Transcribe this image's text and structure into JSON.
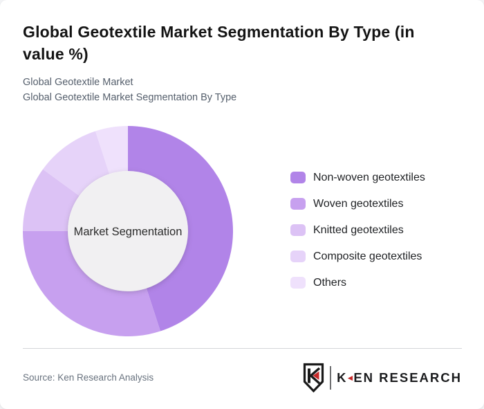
{
  "header": {
    "title": "Global Geotextile Market Segmentation By Type (in value %)",
    "subtitle_line1": "Global Geotextile Market",
    "subtitle_line2": "Global Geotextile Market Segmentation By Type"
  },
  "chart_data": {
    "type": "pie",
    "donut": true,
    "title": "Global Geotextile Market Segmentation By Type (in value %)",
    "center_label": "Market Segmentation",
    "legend_position": "right",
    "start_angle_deg": 0,
    "direction": "clockwise",
    "categories": [
      "Non-woven geotextiles",
      "Woven geotextiles",
      "Knitted geotextiles",
      "Composite geotextiles",
      "Others"
    ],
    "values": [
      45,
      30,
      10,
      10,
      5
    ],
    "colors": [
      "#b184e8",
      "#c7a0ef",
      "#dcc2f5",
      "#e6d3f9",
      "#efe1fc"
    ],
    "inner_circle_color": "#f1f0f2"
  },
  "footer": {
    "source": "Source: Ken Research Analysis",
    "logo": {
      "letter_k": "K",
      "rest": "EN RESEARCH",
      "triangle_glyph": "◄",
      "accent_color": "#c62828"
    }
  }
}
